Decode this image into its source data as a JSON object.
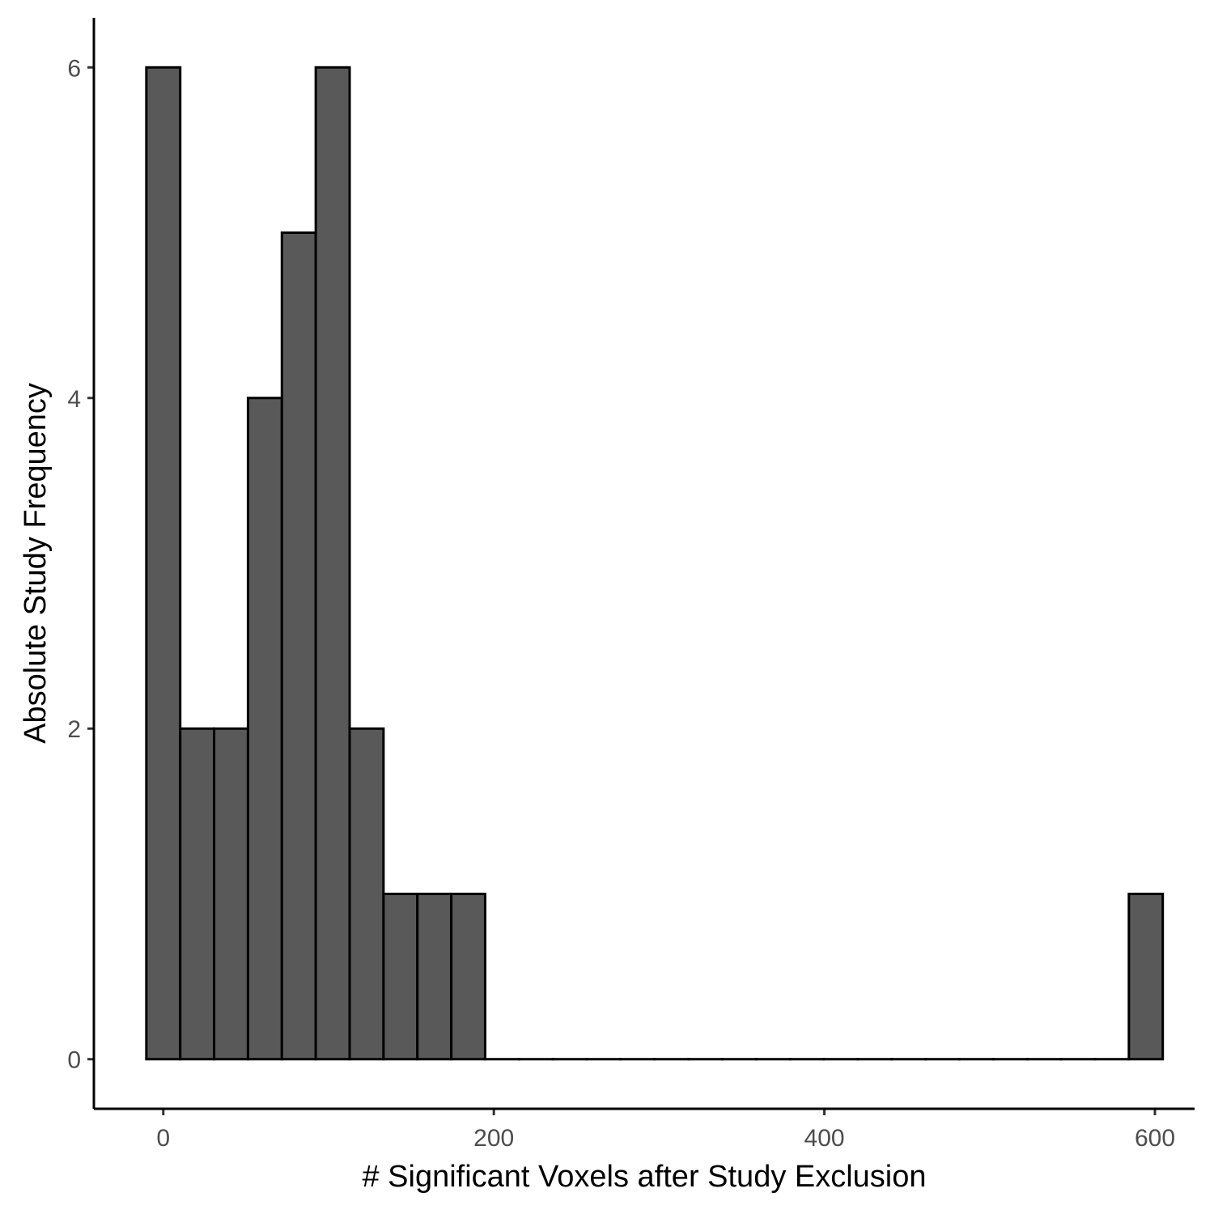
{
  "chart_data": {
    "type": "bar",
    "title": "",
    "xlabel": "# Significant Voxels after Study Exclusion",
    "ylabel": "Absolute Study Frequency",
    "bin_width": 20.5,
    "bins": [
      {
        "x": 0,
        "count": 6
      },
      {
        "x": 20.5,
        "count": 2
      },
      {
        "x": 41,
        "count": 2
      },
      {
        "x": 61.5,
        "count": 4
      },
      {
        "x": 82,
        "count": 5
      },
      {
        "x": 102.5,
        "count": 6
      },
      {
        "x": 123,
        "count": 2
      },
      {
        "x": 143.5,
        "count": 1
      },
      {
        "x": 164,
        "count": 1
      },
      {
        "x": 184.5,
        "count": 1
      },
      {
        "x": 205,
        "count": 0
      },
      {
        "x": 225.5,
        "count": 0
      },
      {
        "x": 246,
        "count": 0
      },
      {
        "x": 266.5,
        "count": 0
      },
      {
        "x": 287,
        "count": 0
      },
      {
        "x": 307.5,
        "count": 0
      },
      {
        "x": 328,
        "count": 0
      },
      {
        "x": 348.5,
        "count": 0
      },
      {
        "x": 369,
        "count": 0
      },
      {
        "x": 389.5,
        "count": 0
      },
      {
        "x": 410,
        "count": 0
      },
      {
        "x": 430.5,
        "count": 0
      },
      {
        "x": 451,
        "count": 0
      },
      {
        "x": 471.5,
        "count": 0
      },
      {
        "x": 492,
        "count": 0
      },
      {
        "x": 512.5,
        "count": 0
      },
      {
        "x": 533,
        "count": 0
      },
      {
        "x": 553.5,
        "count": 0
      },
      {
        "x": 574,
        "count": 0
      },
      {
        "x": 594.5,
        "count": 1
      }
    ],
    "xlim": [
      -42,
      624
    ],
    "ylim": [
      -0.3,
      6.3
    ],
    "x_ticks": [
      0,
      200,
      400,
      600
    ],
    "y_ticks": [
      0,
      2,
      4,
      6
    ],
    "bar_fill": "#595959",
    "bar_outline": "#000000",
    "grid": false,
    "legend": "none"
  }
}
